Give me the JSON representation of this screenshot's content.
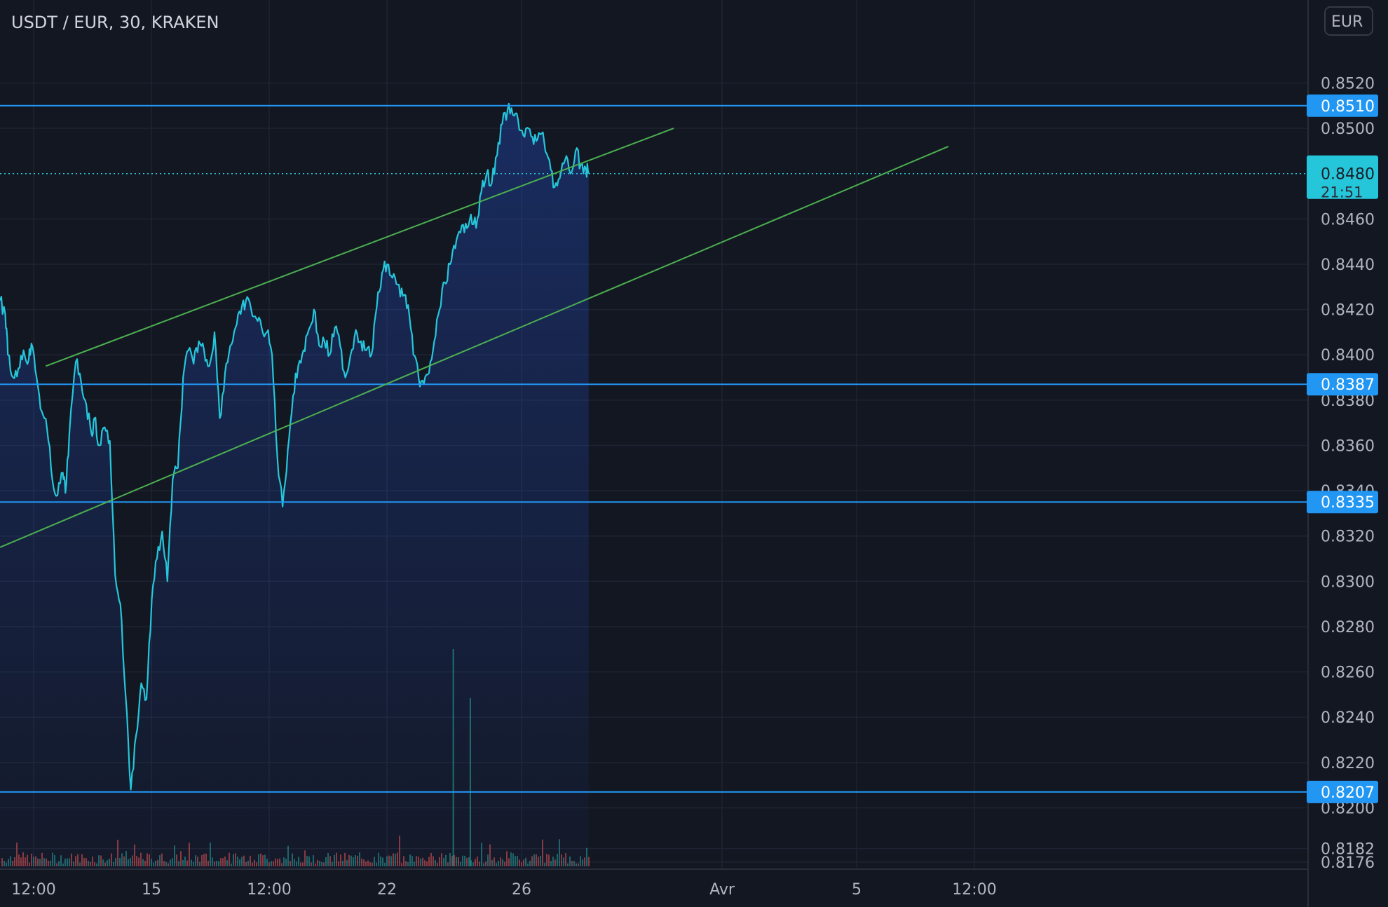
{
  "header": {
    "title": "USDT / EUR, 30, KRAKEN",
    "currency_label": "EUR"
  },
  "colors": {
    "background": "#131722",
    "grid": "#1f2331",
    "price_line": "#26c6da",
    "horizontal_levels": "#2196f3",
    "trendlines": "#4caf50",
    "current_badge": "#26c6da",
    "volume_up": "#26a69a",
    "volume_down": "#ef5350",
    "axis_text": "#b2b5be"
  },
  "chart_data": {
    "type": "line",
    "title": "USDT / EUR, 30, KRAKEN",
    "currency": "EUR",
    "xlabel": "",
    "ylabel": "",
    "x_tick_labels": [
      "12:00",
      "15",
      "12:00",
      "22",
      "26",
      "Avr",
      "5",
      "12:00"
    ],
    "y_tick_labels": [
      "0.8520",
      "0.8500",
      "0.8460",
      "0.8440",
      "0.8420",
      "0.8400",
      "0.8380",
      "0.8360",
      "0.8340",
      "0.8320",
      "0.8300",
      "0.8280",
      "0.8260",
      "0.8240",
      "0.8220",
      "0.8200",
      "0.8182",
      "0.8176"
    ],
    "ylim": [
      0.8176,
      0.8535
    ],
    "grid": true,
    "x_range_fraction_used": [
      0.0,
      0.45
    ],
    "series": [
      {
        "type": "area",
        "x_fraction": [
          0.0,
          0.004,
          0.006,
          0.01,
          0.014,
          0.018,
          0.022,
          0.024,
          0.028,
          0.032,
          0.036,
          0.04,
          0.044,
          0.048,
          0.05,
          0.053,
          0.058,
          0.062,
          0.066,
          0.07,
          0.072,
          0.076,
          0.08,
          0.084,
          0.088,
          0.092,
          0.096,
          0.1,
          0.104,
          0.108,
          0.112,
          0.116,
          0.12,
          0.124,
          0.128,
          0.132,
          0.136,
          0.14,
          0.144,
          0.148,
          0.152,
          0.156,
          0.16,
          0.164,
          0.168,
          0.172,
          0.176,
          0.18,
          0.184,
          0.188,
          0.192,
          0.196,
          0.2,
          0.204,
          0.208,
          0.212,
          0.216,
          0.22,
          0.224,
          0.228,
          0.232,
          0.236,
          0.24,
          0.244,
          0.248,
          0.252,
          0.256,
          0.26,
          0.264,
          0.268,
          0.272,
          0.276,
          0.28,
          0.284,
          0.288,
          0.292,
          0.296,
          0.3,
          0.304,
          0.308,
          0.312,
          0.316,
          0.32,
          0.324,
          0.328,
          0.332,
          0.336,
          0.34,
          0.344,
          0.348,
          0.352,
          0.356,
          0.36,
          0.364,
          0.368,
          0.372,
          0.376,
          0.38,
          0.384,
          0.388,
          0.392,
          0.396,
          0.4,
          0.404,
          0.408,
          0.412,
          0.416,
          0.42,
          0.424,
          0.428,
          0.432,
          0.436,
          0.44,
          0.444,
          0.448,
          0.45
        ],
        "values": [
          0.8424,
          0.8418,
          0.84,
          0.839,
          0.8394,
          0.8402,
          0.8398,
          0.8405,
          0.839,
          0.8375,
          0.8367,
          0.8345,
          0.8338,
          0.8348,
          0.8339,
          0.8365,
          0.8397,
          0.8388,
          0.8378,
          0.8365,
          0.8372,
          0.836,
          0.8368,
          0.8362,
          0.8303,
          0.829,
          0.825,
          0.8208,
          0.8232,
          0.8255,
          0.8248,
          0.8292,
          0.831,
          0.8322,
          0.83,
          0.8345,
          0.835,
          0.839,
          0.8402,
          0.8396,
          0.8406,
          0.8402,
          0.8395,
          0.841,
          0.8372,
          0.8392,
          0.8404,
          0.8412,
          0.8418,
          0.8424,
          0.842,
          0.8416,
          0.8412,
          0.841,
          0.84,
          0.8355,
          0.8333,
          0.8358,
          0.8382,
          0.8395,
          0.8402,
          0.8411,
          0.842,
          0.8404,
          0.8406,
          0.84,
          0.8412,
          0.8404,
          0.839,
          0.84,
          0.8411,
          0.8406,
          0.8402,
          0.84,
          0.8421,
          0.8436,
          0.844,
          0.8434,
          0.8431,
          0.8426,
          0.8422,
          0.84,
          0.839,
          0.8387,
          0.8392,
          0.8406,
          0.842,
          0.8432,
          0.844,
          0.8447,
          0.8454,
          0.8458,
          0.8462,
          0.8456,
          0.8472,
          0.848,
          0.8476,
          0.8488,
          0.8502,
          0.8508,
          0.8506,
          0.8504,
          0.8497,
          0.85,
          0.8493,
          0.8498,
          0.8494,
          0.8486,
          0.8474,
          0.8478,
          0.8486,
          0.848,
          0.849,
          0.8484,
          0.8482,
          0.848
        ]
      }
    ],
    "horizontal_levels": [
      0.851,
      0.8387,
      0.8335,
      0.8207
    ],
    "current_price": {
      "value": "0.8480",
      "countdown": "21:51"
    },
    "trendlines": [
      {
        "name": "",
        "x_fraction": [
          0.035,
          0.515
        ],
        "values": [
          0.8395,
          0.85
        ]
      },
      {
        "name": "",
        "x_fraction": [
          0.0,
          0.725
        ],
        "values": [
          0.8315,
          0.8492
        ]
      }
    ],
    "volume_spikes_x_fraction": [
      0.346,
      0.359
    ]
  }
}
